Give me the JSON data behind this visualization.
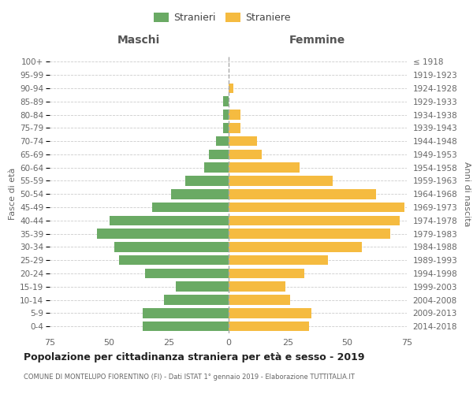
{
  "age_groups": [
    "0-4",
    "5-9",
    "10-14",
    "15-19",
    "20-24",
    "25-29",
    "30-34",
    "35-39",
    "40-44",
    "45-49",
    "50-54",
    "55-59",
    "60-64",
    "65-69",
    "70-74",
    "75-79",
    "80-84",
    "85-89",
    "90-94",
    "95-99",
    "100+"
  ],
  "birth_years": [
    "2014-2018",
    "2009-2013",
    "2004-2008",
    "1999-2003",
    "1994-1998",
    "1989-1993",
    "1984-1988",
    "1979-1983",
    "1974-1978",
    "1969-1973",
    "1964-1968",
    "1959-1963",
    "1954-1958",
    "1949-1953",
    "1944-1948",
    "1939-1943",
    "1934-1938",
    "1929-1933",
    "1924-1928",
    "1919-1923",
    "≤ 1918"
  ],
  "males": [
    36,
    36,
    27,
    22,
    35,
    46,
    48,
    55,
    50,
    32,
    24,
    18,
    10,
    8,
    5,
    2,
    2,
    2,
    0,
    0,
    0
  ],
  "females": [
    34,
    35,
    26,
    24,
    32,
    42,
    56,
    68,
    72,
    74,
    62,
    44,
    30,
    14,
    12,
    5,
    5,
    0,
    2,
    0,
    0
  ],
  "male_color": "#6aaa64",
  "female_color": "#f5bb40",
  "background_color": "#ffffff",
  "grid_color": "#cccccc",
  "title": "Popolazione per cittadinanza straniera per età e sesso - 2019",
  "subtitle": "COMUNE DI MONTELUPO FIORENTINO (FI) - Dati ISTAT 1° gennaio 2019 - Elaborazione TUTTITALIA.IT",
  "xlabel_left": "Maschi",
  "xlabel_right": "Femmine",
  "ylabel_left": "Fasce di età",
  "ylabel_right": "Anni di nascita",
  "legend_male": "Stranieri",
  "legend_female": "Straniere",
  "xlim": 75
}
